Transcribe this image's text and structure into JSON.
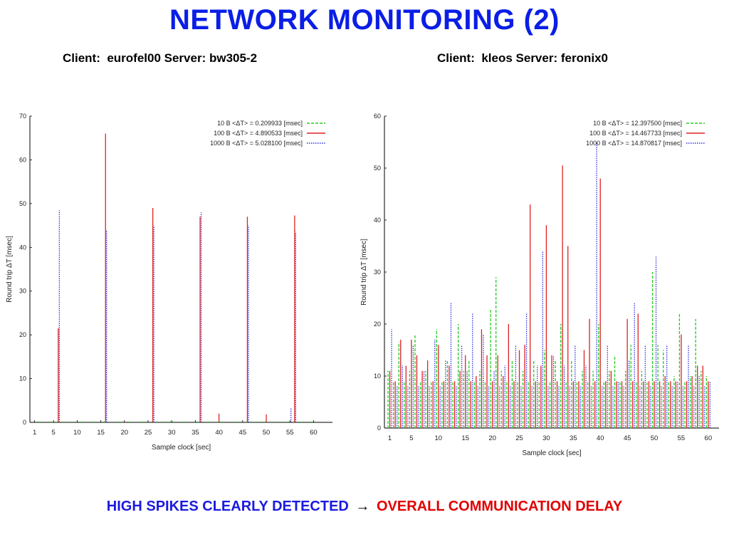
{
  "slide": {
    "title": "NETWORK MONITORING (2)",
    "subtitle_left": "Client:  eurofel00 Server: bw305-2",
    "subtitle_right": "Client:  kleos Server: feronix0",
    "conclusion_left": "HIGH SPIKES CLEARLY DETECTED",
    "conclusion_arrow": "→",
    "conclusion_right": "OVERALL COMMUNICATION DELAY"
  },
  "colors": {
    "title": "#0a1ee6",
    "series_10B": "#22cc22",
    "series_100B": "#dd2222",
    "series_1000B": "#3333dd"
  },
  "chart_data": [
    {
      "type": "bar",
      "xlabel": "Sample clock [sec]",
      "ylabel": "Round trip ΔT [msec]",
      "xlim": [
        0,
        64
      ],
      "ylim": [
        0,
        70
      ],
      "xticks": [
        1,
        5,
        10,
        15,
        20,
        25,
        30,
        35,
        40,
        45,
        50,
        55,
        60
      ],
      "yticks": [
        0,
        10,
        20,
        30,
        40,
        50,
        60,
        70
      ],
      "legend_position": "top-right",
      "grid": false,
      "series": [
        {
          "name": "10 B <ΔT> = 0.209933 [msec]",
          "style": "dashed",
          "color": "#22cc22",
          "x": [
            1,
            2,
            3,
            4,
            5,
            6,
            7,
            8,
            9,
            10,
            11,
            12,
            13,
            14,
            15,
            16,
            17,
            18,
            19,
            20,
            21,
            22,
            23,
            24,
            25,
            26,
            27,
            28,
            29,
            30,
            31,
            32,
            33,
            34,
            35,
            36,
            37,
            38,
            39,
            40,
            41,
            42,
            43,
            44,
            45,
            46,
            47,
            48,
            49,
            50,
            51,
            52,
            53,
            54,
            55,
            56,
            57,
            58,
            59,
            60
          ],
          "values": [
            0.2,
            0.2,
            0.2,
            0.2,
            0.2,
            0.2,
            0.2,
            0.2,
            0.2,
            0.2,
            0.2,
            0.2,
            0.2,
            0.2,
            0.2,
            0.2,
            0.2,
            0.2,
            0.2,
            0.2,
            0.2,
            0.2,
            0.2,
            0.2,
            0.2,
            0.2,
            0.2,
            0.2,
            0.2,
            0.3,
            0.2,
            0.2,
            0.2,
            0.2,
            0.2,
            0.2,
            0.2,
            0.2,
            0.2,
            0.2,
            0.2,
            0.2,
            0.2,
            0.2,
            0.2,
            0.2,
            0.2,
            0.2,
            0.2,
            0.2,
            0.2,
            0.2,
            0.2,
            0.2,
            0.2,
            0.2,
            0.2,
            0.2,
            0.2,
            0.2
          ]
        },
        {
          "name": "100 B <ΔT> = 4.890533 [msec]",
          "style": "solid",
          "color": "#dd2222",
          "x": [
            6,
            16,
            26,
            36,
            40,
            46,
            50,
            56
          ],
          "values": [
            21.5,
            66,
            49,
            47,
            2,
            47,
            1.8,
            47.3
          ]
        },
        {
          "name": "1000 B <ΔT> = 5.028100 [msec]",
          "style": "dotted",
          "color": "#3333dd",
          "x": [
            6,
            16,
            26,
            36,
            46,
            55,
            56
          ],
          "values": [
            48.5,
            44,
            45,
            48,
            45,
            3.3,
            43.5
          ]
        }
      ]
    },
    {
      "type": "bar",
      "xlabel": "Sample clock [sec]",
      "ylabel": "Round trip ΔT [msec]",
      "xlim": [
        0,
        62
      ],
      "ylim": [
        0,
        60
      ],
      "xticks": [
        1,
        5,
        10,
        15,
        20,
        25,
        30,
        35,
        40,
        45,
        50,
        55,
        60
      ],
      "yticks": [
        0,
        10,
        20,
        30,
        40,
        50,
        60
      ],
      "legend_position": "top-right",
      "grid": false,
      "series": [
        {
          "name": "10 B <ΔT> = 12.397500 [msec]",
          "style": "dashed",
          "color": "#22cc22",
          "x": [
            1,
            2,
            3,
            4,
            5,
            6,
            7,
            8,
            9,
            10,
            11,
            12,
            13,
            14,
            15,
            16,
            17,
            18,
            19,
            20,
            21,
            22,
            23,
            24,
            25,
            26,
            27,
            28,
            29,
            30,
            31,
            32,
            33,
            34,
            35,
            36,
            37,
            38,
            39,
            40,
            41,
            42,
            43,
            44,
            45,
            46,
            47,
            48,
            49,
            50,
            51,
            52,
            53,
            54,
            55,
            56,
            57,
            58,
            59,
            60
          ],
          "values": [
            11,
            9,
            16.5,
            9,
            11,
            18,
            9,
            11,
            9,
            19,
            9,
            13,
            9,
            20,
            11,
            13,
            9,
            11,
            9,
            23,
            29,
            11,
            9,
            13,
            9,
            11,
            9,
            13,
            9,
            15,
            9,
            13,
            20,
            9,
            13,
            9,
            11,
            9,
            11,
            20,
            9,
            11,
            14,
            9,
            11,
            16,
            9,
            11,
            9,
            30,
            16,
            15,
            9,
            10,
            22,
            9,
            10,
            21,
            11,
            10
          ]
        },
        {
          "name": "100 B <ΔT> = 14.467733 [msec]",
          "style": "solid",
          "color": "#dd2222",
          "x": [
            1,
            2,
            3,
            4,
            5,
            6,
            7,
            8,
            9,
            10,
            11,
            12,
            13,
            14,
            15,
            16,
            17,
            18,
            19,
            20,
            21,
            22,
            23,
            24,
            25,
            26,
            27,
            28,
            29,
            30,
            31,
            32,
            33,
            34,
            35,
            36,
            37,
            38,
            39,
            40,
            41,
            42,
            43,
            44,
            45,
            46,
            47,
            48,
            49,
            50,
            51,
            52,
            53,
            54,
            55,
            56,
            57,
            58,
            59,
            60
          ],
          "values": [
            11,
            9,
            17,
            12,
            17,
            14,
            11,
            13,
            9,
            16,
            9,
            12,
            9,
            11,
            14,
            9,
            10,
            19,
            14,
            9,
            14,
            10,
            20,
            9,
            15,
            16,
            43,
            9,
            12,
            39,
            14,
            9,
            50.5,
            35,
            9,
            9,
            15,
            21,
            9,
            48,
            9,
            11,
            9,
            9,
            21,
            9,
            22,
            9,
            9,
            9,
            9,
            10,
            9,
            9,
            18,
            9,
            10,
            12,
            12,
            9
          ]
        },
        {
          "name": "1000 B <ΔT> = 14.870817 [msec]",
          "style": "dotted",
          "color": "#3333dd",
          "x": [
            1,
            2,
            3,
            4,
            5,
            6,
            7,
            8,
            9,
            10,
            11,
            12,
            13,
            14,
            15,
            16,
            17,
            18,
            19,
            20,
            21,
            22,
            23,
            24,
            25,
            26,
            27,
            28,
            29,
            30,
            31,
            32,
            33,
            34,
            35,
            36,
            37,
            38,
            39,
            40,
            41,
            42,
            43,
            44,
            45,
            46,
            47,
            48,
            49,
            50,
            51,
            52,
            53,
            54,
            55,
            56,
            57,
            58,
            59,
            60
          ],
          "values": [
            19,
            8,
            12,
            8,
            16,
            8,
            11,
            8,
            17,
            8,
            13,
            24,
            8,
            16,
            11,
            22,
            8,
            18,
            8,
            11,
            8,
            12,
            8,
            16,
            8,
            22,
            8,
            12,
            34,
            8,
            14,
            8,
            12,
            8,
            16,
            8,
            12,
            8,
            55,
            8,
            16,
            8,
            9,
            8,
            13,
            24,
            8,
            16,
            8,
            33,
            8,
            16,
            8,
            9,
            8,
            16,
            8,
            10,
            8,
            9
          ]
        }
      ]
    }
  ]
}
